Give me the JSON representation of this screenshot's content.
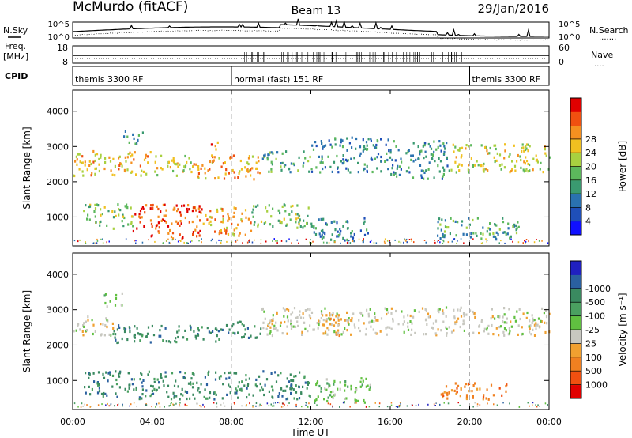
{
  "header": {
    "site": "McMurdo (fitACF)",
    "beam": "Beam 13",
    "date": "29/Jan/2016"
  },
  "aux_panels": {
    "nsky_label": "N.Sky",
    "nsearch_label": "N.Search",
    "freq_label_1": "Freq.",
    "freq_label_2": "[MHz]",
    "nave_label": "Nave",
    "cpid_label": "CPID",
    "noise_ticks": [
      "10^5",
      "10^0"
    ],
    "freq_ticks": [
      "18",
      "8"
    ],
    "nave_ticks": [
      "60",
      "0"
    ]
  },
  "cpid_segments": [
    {
      "label": "themis 3300 RF",
      "start": 0,
      "end": 8
    },
    {
      "label": "normal (fast) 151 RF",
      "start": 8,
      "end": 20
    },
    {
      "label": "themis 3300 RF",
      "start": 20,
      "end": 24
    }
  ],
  "time_axis": {
    "ticks": [
      "00:00",
      "04:00",
      "08:00",
      "12:00",
      "16:00",
      "20:00",
      "00:00"
    ],
    "label": "Time UT"
  },
  "chart_data": [
    {
      "type": "heatmap",
      "quantity": "Power",
      "xlabel": "Time UT",
      "ylabel": "Slant Range [km]",
      "xlim": [
        0,
        24
      ],
      "ylim": [
        180,
        4600
      ],
      "yticks": [
        1000,
        2000,
        3000,
        4000
      ],
      "colorbar": {
        "label": "Power [dB]",
        "ticks": [
          "4",
          "8",
          "12",
          "16",
          "20",
          "24",
          "28"
        ],
        "colors": [
          "#1010ff",
          "#1f4fb8",
          "#2a72b0",
          "#3a9a70",
          "#5cb85c",
          "#a8d040",
          "#f0c020",
          "#f59020",
          "#f05010",
          "#e00000"
        ]
      },
      "echo_regions": [
        {
          "t0": 0.0,
          "t1": 4.0,
          "r0": 2200,
          "r1": 2900,
          "level": 20
        },
        {
          "t0": 4.0,
          "t1": 6.0,
          "r0": 2200,
          "r1": 2800,
          "level": 17
        },
        {
          "t0": 6.0,
          "t1": 9.5,
          "r0": 2100,
          "r1": 2800,
          "level": 22
        },
        {
          "t0": 9.5,
          "t1": 12.0,
          "r0": 2300,
          "r1": 2900,
          "level": 12
        },
        {
          "t0": 12.0,
          "t1": 16.0,
          "r0": 2300,
          "r1": 3300,
          "level": 9
        },
        {
          "t0": 16.0,
          "t1": 19.0,
          "r0": 2100,
          "r1": 3200,
          "level": 10
        },
        {
          "t0": 19.0,
          "t1": 24.0,
          "r0": 2300,
          "r1": 3100,
          "level": 17
        },
        {
          "t0": 0.5,
          "t1": 3.0,
          "r0": 700,
          "r1": 1400,
          "level": 14
        },
        {
          "t0": 3.0,
          "t1": 6.5,
          "r0": 400,
          "r1": 1400,
          "level": 26
        },
        {
          "t0": 6.5,
          "t1": 9.0,
          "r0": 500,
          "r1": 1300,
          "level": 22
        },
        {
          "t0": 9.0,
          "t1": 12.0,
          "r0": 700,
          "r1": 1400,
          "level": 14
        },
        {
          "t0": 12.0,
          "t1": 15.0,
          "r0": 300,
          "r1": 1000,
          "level": 8
        },
        {
          "t0": 18.0,
          "t1": 22.5,
          "r0": 400,
          "r1": 1000,
          "level": 11
        },
        {
          "t0": 2.5,
          "t1": 3.5,
          "r0": 3100,
          "r1": 3500,
          "level": 9
        },
        {
          "t0": 6.8,
          "t1": 7.3,
          "r0": 2900,
          "r1": 3200,
          "level": 24
        }
      ]
    },
    {
      "type": "heatmap",
      "quantity": "Velocity",
      "xlabel": "Time UT",
      "ylabel": "Slant Range [km]",
      "xlim": [
        0,
        24
      ],
      "ylim": [
        180,
        4600
      ],
      "yticks": [
        1000,
        2000,
        3000,
        4000
      ],
      "colorbar": {
        "label": "Velocity [m s⁻¹]",
        "ticks": [
          "1000",
          "500",
          "100",
          "25",
          "-25",
          "-100",
          "-500",
          "-1000"
        ],
        "colors": [
          "#2020c0",
          "#2a60a0",
          "#3a8a60",
          "#4aa060",
          "#60c040",
          "#c8c8c0",
          "#f0a030",
          "#f08020",
          "#f05010",
          "#e00000"
        ]
      },
      "echo_regions": [
        {
          "t0": 0.0,
          "t1": 2.0,
          "r0": 2300,
          "r1": 2900,
          "class": 5
        },
        {
          "t0": 2.0,
          "t1": 8.0,
          "r0": 2100,
          "r1": 2600,
          "class": 2
        },
        {
          "t0": 8.0,
          "t1": 9.5,
          "r0": 2200,
          "r1": 2700,
          "class": 2
        },
        {
          "t0": 9.5,
          "t1": 24.0,
          "r0": 2300,
          "r1": 3100,
          "class": 5
        },
        {
          "t0": 12.5,
          "t1": 14.0,
          "r0": 2300,
          "r1": 2900,
          "class": 6
        },
        {
          "t0": 0.5,
          "t1": 12.0,
          "r0": 500,
          "r1": 1300,
          "class": 2
        },
        {
          "t0": 12.0,
          "t1": 15.0,
          "r0": 400,
          "r1": 1100,
          "class": 4
        },
        {
          "t0": 18.5,
          "t1": 22.0,
          "r0": 500,
          "r1": 1000,
          "class": 7
        },
        {
          "t0": 1.5,
          "t1": 2.5,
          "r0": 3100,
          "r1": 3500,
          "class": 4
        }
      ]
    }
  ],
  "colors": {
    "axis": "#000000",
    "grid_dash": "#b0b0b0",
    "background": "#ffffff"
  }
}
